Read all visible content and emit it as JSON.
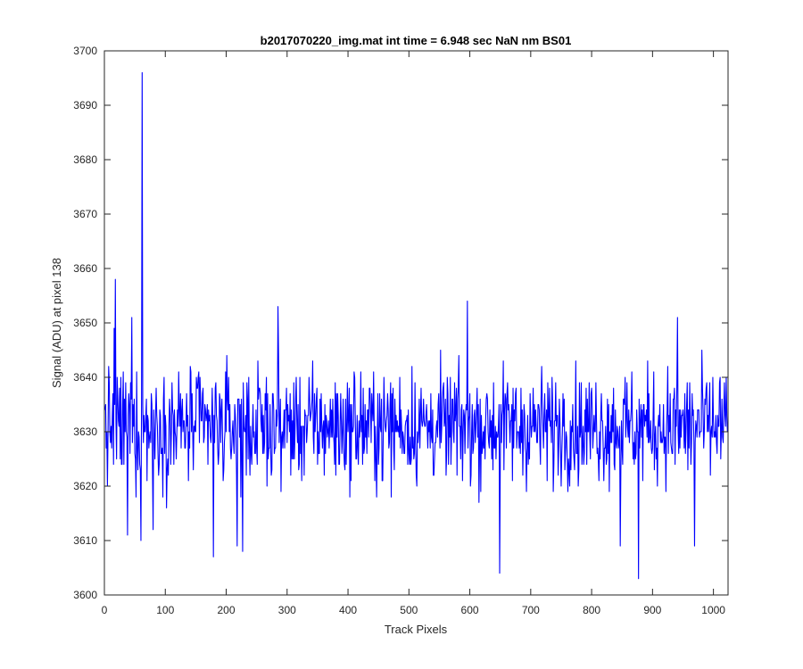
{
  "chart_data": {
    "type": "line",
    "title": "b2017070220_img.mat int time = 6.948 sec  NaN nm BS01",
    "xlabel": "Track Pixels",
    "ylabel": "Signal (ADU) at pixel 138",
    "xlim": [
      0,
      1024
    ],
    "ylim": [
      3600,
      3700
    ],
    "xticks": [
      0,
      100,
      200,
      300,
      400,
      500,
      600,
      700,
      800,
      900,
      1000
    ],
    "yticks": [
      3600,
      3610,
      3620,
      3630,
      3640,
      3650,
      3660,
      3670,
      3680,
      3690,
      3700
    ],
    "grid": false,
    "line_color": "#0000ff",
    "series": [
      {
        "n_points": 1024,
        "baseline": 3631,
        "noise_amplitude": 8,
        "peaks": [
          {
            "x": 15,
            "y": 3649
          },
          {
            "x": 17,
            "y": 3658
          },
          {
            "x": 37,
            "y": 3611
          },
          {
            "x": 44,
            "y": 3651
          },
          {
            "x": 59,
            "y": 3610
          },
          {
            "x": 61,
            "y": 3696
          },
          {
            "x": 79,
            "y": 3612
          },
          {
            "x": 178,
            "y": 3607
          },
          {
            "x": 217,
            "y": 3609
          },
          {
            "x": 226,
            "y": 3608
          },
          {
            "x": 284,
            "y": 3653
          },
          {
            "x": 595,
            "y": 3654
          },
          {
            "x": 648,
            "y": 3604
          },
          {
            "x": 846,
            "y": 3609
          },
          {
            "x": 876,
            "y": 3603
          },
          {
            "x": 940,
            "y": 3651
          },
          {
            "x": 968,
            "y": 3609
          },
          {
            "x": 1010,
            "y": 3640
          }
        ]
      }
    ]
  }
}
